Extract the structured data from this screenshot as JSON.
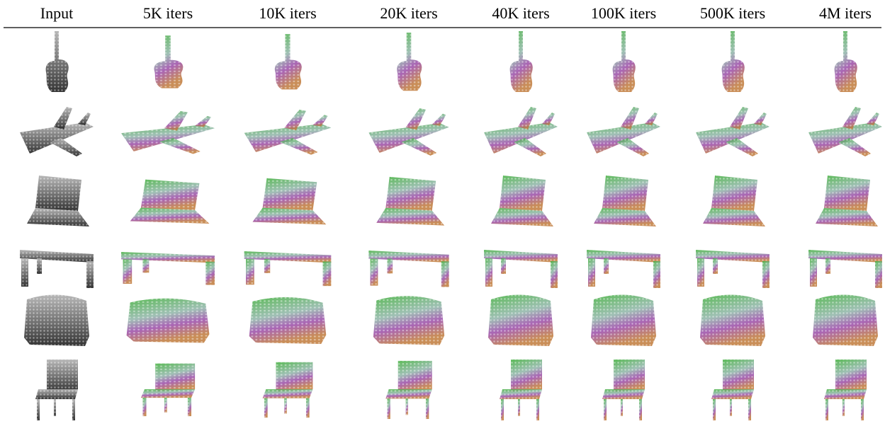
{
  "header": {
    "columns": [
      "Input",
      "5K iters",
      "10K iters",
      "20K iters",
      "40K iters",
      "100K iters",
      "500K iters",
      "4M iters"
    ]
  }
}
